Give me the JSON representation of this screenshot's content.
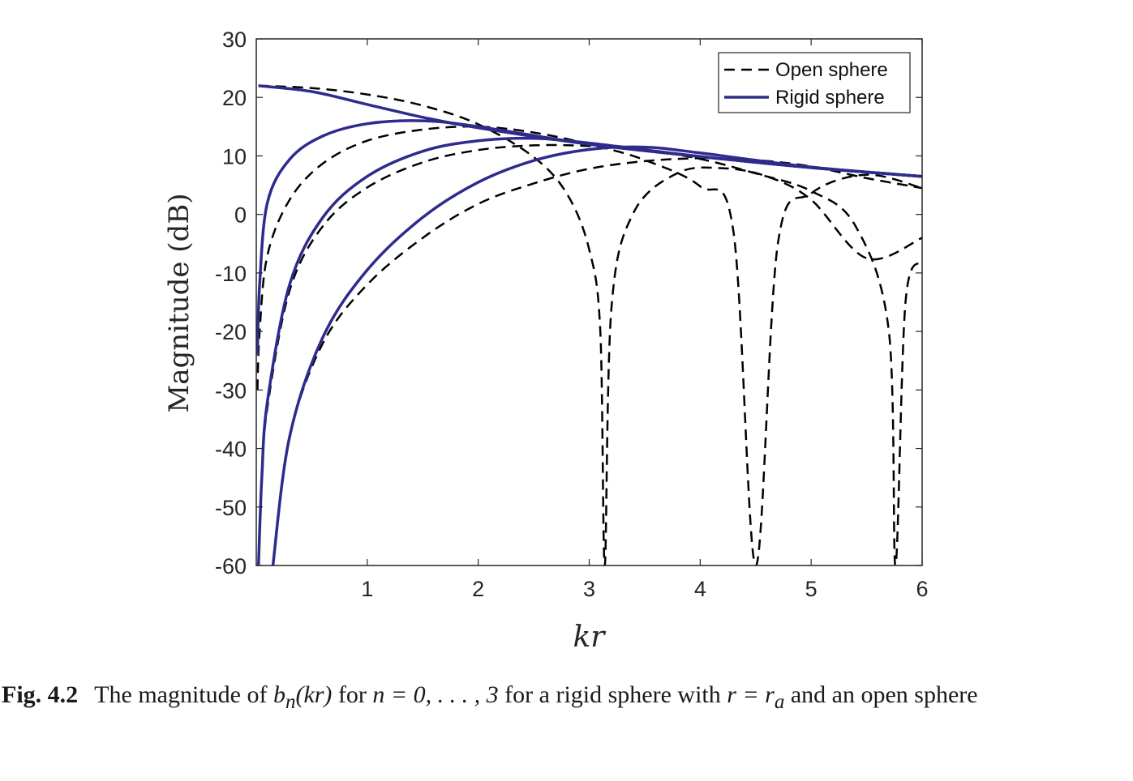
{
  "chart_data": {
    "type": "line",
    "xlabel": "kr",
    "ylabel": "Magnitude (dB)",
    "xlim": [
      0,
      6
    ],
    "ylim": [
      -60,
      30
    ],
    "xticks": [
      "1",
      "2",
      "3",
      "4",
      "5",
      "6"
    ],
    "yticks": [
      "30",
      "20",
      "10",
      "0",
      "-10",
      "-20",
      "-30",
      "-40",
      "-50",
      "-60"
    ],
    "legend_position": "top-right",
    "series": [
      {
        "name": "Open sphere",
        "style": "dashed",
        "color": "#000000"
      },
      {
        "name": "Rigid sphere",
        "style": "solid",
        "color": "#2e2b8c"
      }
    ],
    "curves": [
      {
        "series": "Open sphere",
        "n": 0,
        "x": [
          0.02,
          0.5,
          1.0,
          1.5,
          2.0,
          2.5,
          2.8,
          3.0,
          3.1,
          3.14,
          3.2,
          3.4,
          3.8,
          4.2,
          4.6,
          5.0,
          5.5,
          6.0
        ],
        "y": [
          22,
          21.6,
          20.5,
          18.6,
          15.4,
          9.8,
          3.5,
          -6,
          -20,
          -60,
          -16,
          0.3,
          7.1,
          7.9,
          6.5,
          2.5,
          -7.5,
          -4
        ]
      },
      {
        "series": "Rigid sphere",
        "n": 0,
        "x": [
          0.02,
          0.5,
          1.0,
          1.5,
          2.0,
          3.0,
          4.0,
          5.0,
          6.0
        ],
        "y": [
          22,
          21,
          18.8,
          16.6,
          14.8,
          12.0,
          9.9,
          8.0,
          6.5
        ]
      },
      {
        "series": "Open sphere",
        "n": 1,
        "x": [
          0.01,
          0.03,
          0.1,
          0.3,
          0.6,
          1.0,
          1.5,
          2.0,
          2.5,
          3.0,
          3.5,
          4.0,
          4.3,
          4.5,
          4.7,
          5.0,
          5.5,
          6.0
        ],
        "y": [
          -30,
          -20,
          -7,
          2.5,
          8.7,
          12.6,
          14.5,
          15.0,
          14.0,
          12.0,
          9.3,
          4.8,
          -3,
          -60,
          -5,
          3.6,
          6.8,
          4.5
        ]
      },
      {
        "series": "Rigid sphere",
        "n": 1,
        "x": [
          0.01,
          0.03,
          0.1,
          0.3,
          0.6,
          1.0,
          1.5,
          2.0,
          3.0,
          4.0,
          5.0,
          6.0
        ],
        "y": [
          -24,
          -12,
          2,
          9.4,
          13.4,
          15.5,
          16.0,
          15.0,
          12.0,
          9.9,
          8.0,
          6.5
        ]
      },
      {
        "series": "Open sphere",
        "n": 2,
        "x": [
          0.02,
          0.05,
          0.1,
          0.3,
          0.6,
          1.0,
          1.5,
          2.0,
          2.5,
          3.0,
          3.5,
          4.0,
          4.5,
          5.0,
          5.4,
          5.7,
          5.76,
          5.85,
          6.0
        ],
        "y": [
          -60,
          -45,
          -33,
          -13,
          -2,
          4.6,
          8.9,
          11.0,
          11.8,
          11.7,
          11.0,
          9.5,
          7.0,
          4.0,
          -2,
          -20,
          -60,
          -15,
          -8
        ]
      },
      {
        "series": "Rigid sphere",
        "n": 2,
        "x": [
          0.02,
          0.05,
          0.1,
          0.3,
          0.6,
          1.0,
          1.5,
          2.0,
          2.5,
          3.0,
          4.0,
          5.0,
          6.0
        ],
        "y": [
          -60,
          -45,
          -32,
          -12,
          -0.5,
          6.5,
          10.8,
          12.6,
          13.0,
          12.2,
          9.9,
          8.0,
          6.5
        ]
      },
      {
        "series": "Open sphere",
        "n": 3,
        "x": [
          0.15,
          0.3,
          0.6,
          1.0,
          1.5,
          2.0,
          2.5,
          3.0,
          3.5,
          4.0,
          4.5,
          5.0,
          5.5,
          6.0
        ],
        "y": [
          -60,
          -38,
          -22,
          -12,
          -4,
          1.8,
          5.3,
          7.8,
          9.1,
          9.6,
          9.3,
          8.2,
          6.2,
          4.5
        ]
      },
      {
        "series": "Rigid sphere",
        "n": 3,
        "x": [
          0.15,
          0.3,
          0.6,
          1.0,
          1.5,
          2.0,
          2.5,
          3.0,
          3.5,
          4.0,
          5.0,
          6.0
        ],
        "y": [
          -60,
          -38,
          -21,
          -9.5,
          -0.5,
          5.5,
          9.2,
          11.1,
          11.5,
          10.5,
          8.1,
          6.5
        ]
      }
    ]
  },
  "caption": {
    "label": "Fig. 4.2",
    "text_1": "The magnitude of ",
    "bn": "b",
    "bn_sub": "n",
    "arg": "(kr)",
    "text_2": " for ",
    "n_range": "n = 0, . . . , 3",
    "text_3": " for a rigid sphere  with ",
    "r_eq": "r = r",
    "ra_sub": "a",
    "text_4": " and an open sphere"
  }
}
